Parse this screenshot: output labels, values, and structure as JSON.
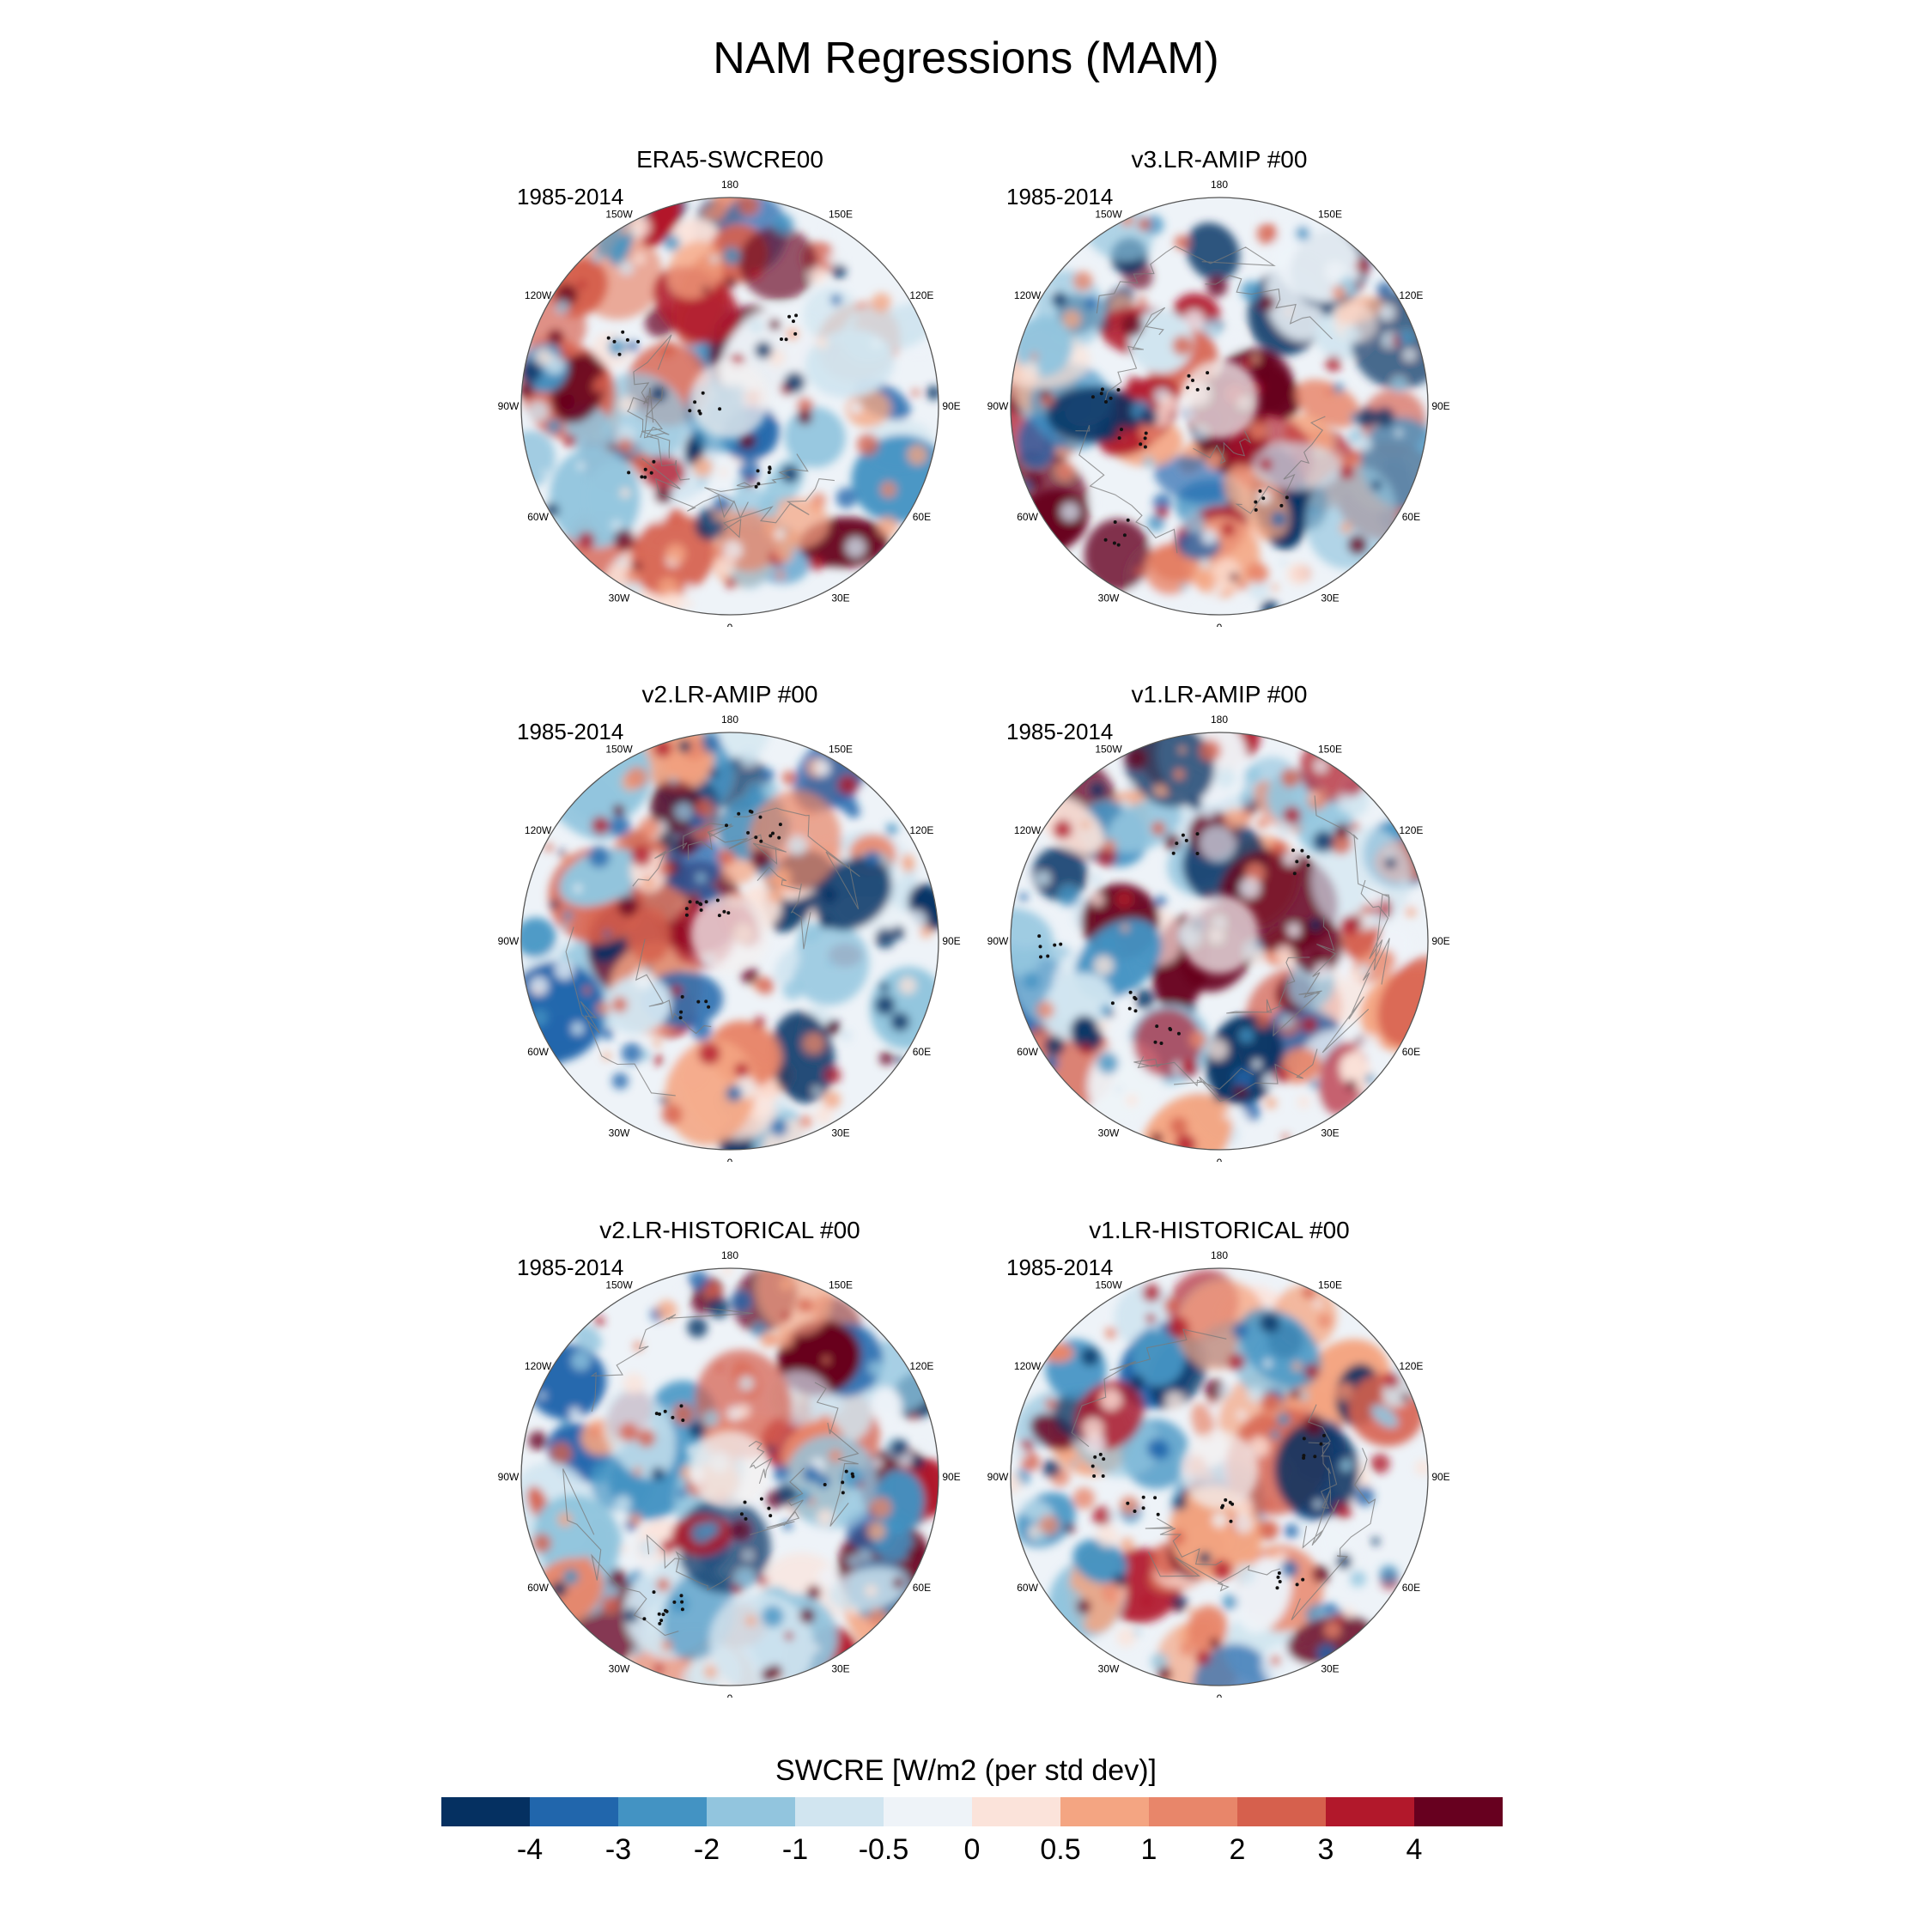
{
  "figure": {
    "title": "NAM Regressions (MAM)",
    "colorbar_title": "SWCRE [W/m2 (per std dev)]"
  },
  "colorbar": {
    "levels": [
      "-4",
      "-3",
      "-2",
      "-1",
      "-0.5",
      "0",
      "0.5",
      "1",
      "2",
      "3",
      "4"
    ],
    "colors": [
      "#053061",
      "#2166ac",
      "#4393c3",
      "#92c5de",
      "#d1e5f0",
      "#eef3f8",
      "#fbe3da",
      "#f4a582",
      "#e8866a",
      "#d6604d",
      "#b2182b",
      "#67001f"
    ]
  },
  "longitude_labels": [
    "180",
    "150E",
    "120E",
    "90E",
    "60E",
    "30E",
    "0",
    "30W",
    "60W",
    "90W",
    "120W",
    "150W"
  ],
  "panels": [
    {
      "title": "ERA5-SWCRE00",
      "period": "1985-2014"
    },
    {
      "title": "v3.LR-AMIP  #00",
      "period": "1985-2014"
    },
    {
      "title": "v2.LR-AMIP  #00",
      "period": "1985-2014"
    },
    {
      "title": "v1.LR-AMIP  #00",
      "period": "1985-2014"
    },
    {
      "title": "v2.LR-HISTORICAL  #00",
      "period": "1985-2014"
    },
    {
      "title": "v1.LR-HISTORICAL  #00",
      "period": "1985-2014"
    }
  ]
}
